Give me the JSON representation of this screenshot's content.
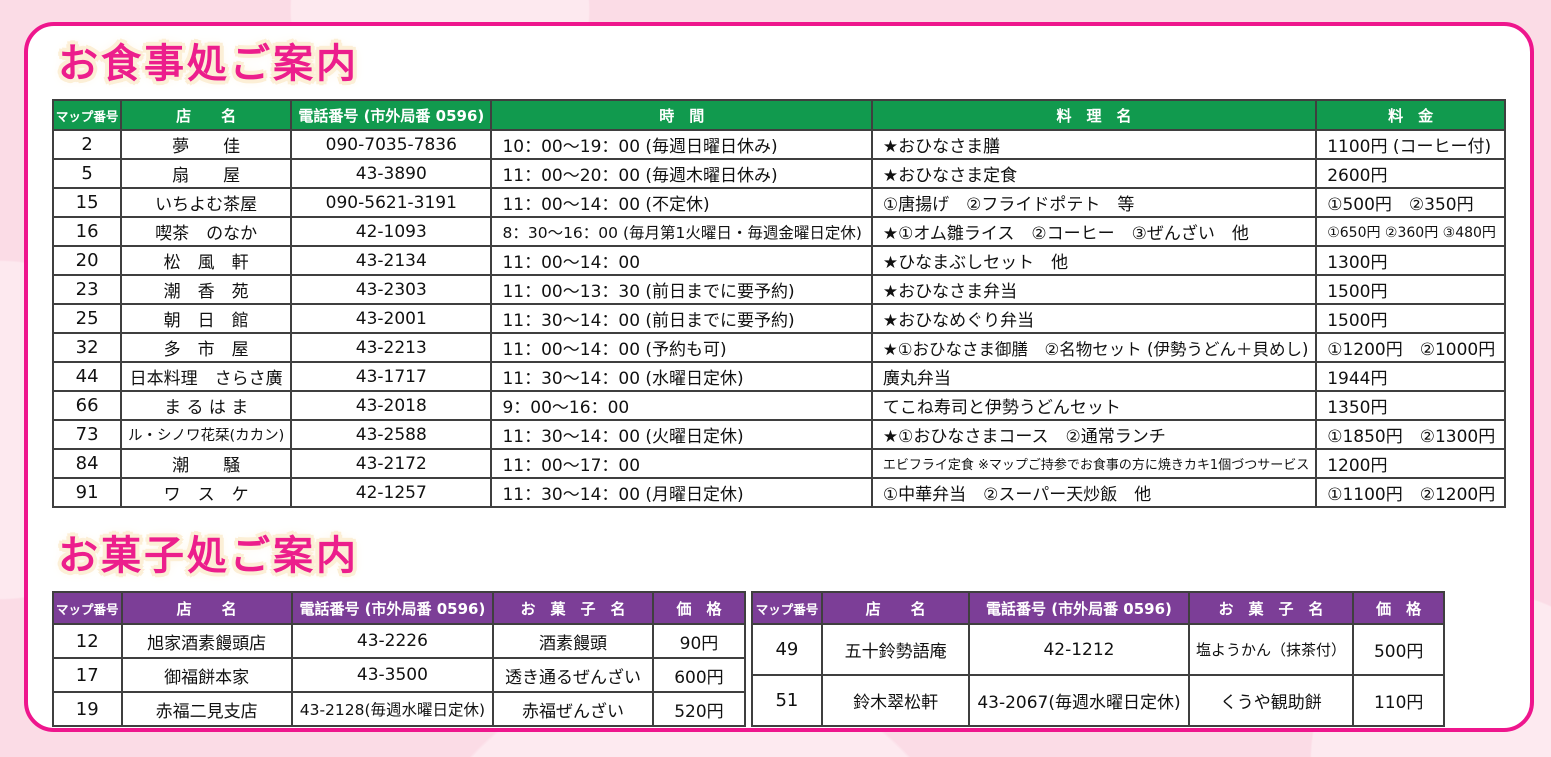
{
  "colors": {
    "accent_pink": "#ec1e8c",
    "card_border_pink": "#ee168d",
    "dining_header_green": "#119a4e",
    "sweets_header_purple": "#7c3e97",
    "background_pink": "#fbdce6"
  },
  "dining": {
    "title": "お食事処ご案内",
    "headers": [
      "マップ番号",
      "店　　名",
      "電話番号 (市外局番 0596)",
      "時　間",
      "料　理　名",
      "料　金"
    ],
    "rows": [
      {
        "no": "2",
        "name": "夢　　佳",
        "phone": "090-7035-7836",
        "hours": "10：00～19：00 (毎週日曜日休み)",
        "dish": "★おひなさま膳",
        "price": "1100円 (コーヒー付)"
      },
      {
        "no": "5",
        "name": "扇　　屋",
        "phone": "43-3890",
        "hours": "11：00～20：00 (毎週木曜日休み)",
        "dish": "★おひなさま定食",
        "price": "2600円"
      },
      {
        "no": "15",
        "name": "いちよむ茶屋",
        "phone": "090-5621-3191",
        "hours": "11：00～14：00 (不定休)",
        "dish": "①唐揚げ　②フライドポテト　等",
        "price": "①500円　②350円"
      },
      {
        "no": "16",
        "name": "喫茶　のなか",
        "phone": "42-1093",
        "hours": "8：30～16：00 (毎月第1火曜日・毎週金曜日定休)",
        "dish": "★①オム雛ライス　②コーヒー　③ぜんざい　他",
        "price": "①650円 ②360円 ③480円"
      },
      {
        "no": "20",
        "name": "松　風　軒",
        "phone": "43-2134",
        "hours": "11：00～14：00",
        "dish": "★ひなまぶしセット　他",
        "price": "1300円"
      },
      {
        "no": "23",
        "name": "潮　香　苑",
        "phone": "43-2303",
        "hours": "11：00～13：30 (前日までに要予約)",
        "dish": "★おひなさま弁当",
        "price": "1500円"
      },
      {
        "no": "25",
        "name": "朝　日　館",
        "phone": "43-2001",
        "hours": "11：30～14：00 (前日までに要予約)",
        "dish": "★おひなめぐり弁当",
        "price": "1500円"
      },
      {
        "no": "32",
        "name": "多　市　屋",
        "phone": "43-2213",
        "hours": "11：00～14：00 (予約も可)",
        "dish": "★①おひなさま御膳　②名物セット (伊勢うどん＋貝めし)",
        "price": "①1200円　②1000円"
      },
      {
        "no": "44",
        "name": "日本料理　さらさ廣",
        "phone": "43-1717",
        "hours": "11：30～14：00 (水曜日定休)",
        "dish": "廣丸弁当",
        "price": "1944円"
      },
      {
        "no": "66",
        "name": "ま る は ま",
        "phone": "43-2018",
        "hours": "9：00～16：00",
        "dish": "てこね寿司と伊勢うどんセット",
        "price": "1350円"
      },
      {
        "no": "73",
        "name": "ル・シノワ花栞(カカン)",
        "phone": "43-2588",
        "hours": "11：30～14：00 (火曜日定休)",
        "dish": "★①おひなさまコース　②通常ランチ",
        "price": "①1850円　②1300円"
      },
      {
        "no": "84",
        "name": "潮　　騒",
        "phone": "43-2172",
        "hours": "11：00～17：00",
        "dish": "エビフライ定食 ※マップご持参でお食事の方に焼きカキ1個づつサービス",
        "price": "1200円"
      },
      {
        "no": "91",
        "name": "ワ　ス　ケ",
        "phone": "42-1257",
        "hours": "11：30～14：00 (月曜日定休)",
        "dish": "①中華弁当　②スーパー天炒飯　他",
        "price": "①1100円　②1200円"
      }
    ]
  },
  "sweets": {
    "title": "お菓子処ご案内",
    "headers": [
      "マップ番号",
      "店　　名",
      "電話番号 (市外局番 0596)",
      "お　菓　子　名",
      "価　格"
    ],
    "left_rows": [
      {
        "no": "12",
        "name": "旭家酒素饅頭店",
        "phone": "43-2226",
        "item": "酒素饅頭",
        "price": "90円"
      },
      {
        "no": "17",
        "name": "御福餅本家",
        "phone": "43-3500",
        "item": "透き通るぜんざい",
        "price": "600円"
      },
      {
        "no": "19",
        "name": "赤福二見支店",
        "phone": "43-2128(毎週水曜日定休)",
        "item": "赤福ぜんざい",
        "price": "520円"
      }
    ],
    "right_rows": [
      {
        "no": "49",
        "name": "五十鈴勢語庵",
        "phone": "42-1212",
        "item": "塩ようかん（抹茶付）",
        "price": "500円"
      },
      {
        "no": "51",
        "name": "鈴木翠松軒",
        "phone": "43-2067(毎週水曜日定休)",
        "item": "くうや観助餅",
        "price": "110円"
      }
    ]
  }
}
